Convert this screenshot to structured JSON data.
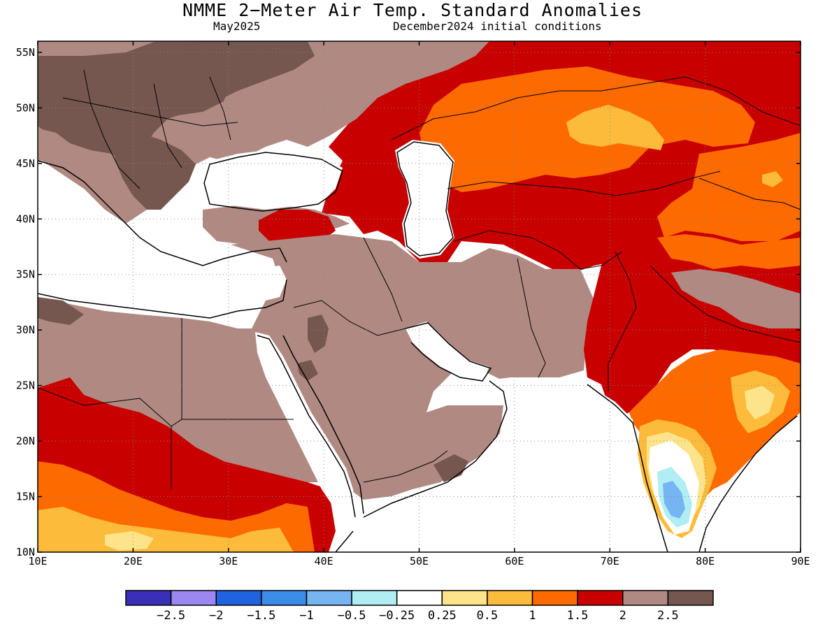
{
  "header": {
    "title": "NMME 2−Meter Air Temp. Standard Anomalies",
    "target_month": "May2025",
    "initial_conditions": "December2024 initial conditions"
  },
  "map": {
    "lon_range": [
      10,
      90
    ],
    "lat_range": [
      10,
      56
    ],
    "lon_ticks": [
      {
        "value": 10,
        "label": "10E"
      },
      {
        "value": 20,
        "label": "20E"
      },
      {
        "value": 30,
        "label": "30E"
      },
      {
        "value": 40,
        "label": "40E"
      },
      {
        "value": 50,
        "label": "50E"
      },
      {
        "value": 60,
        "label": "60E"
      },
      {
        "value": 70,
        "label": "70E"
      },
      {
        "value": 80,
        "label": "80E"
      },
      {
        "value": 90,
        "label": "90E"
      }
    ],
    "lat_ticks": [
      {
        "value": 10,
        "label": "10N"
      },
      {
        "value": 15,
        "label": "15N"
      },
      {
        "value": 20,
        "label": "20N"
      },
      {
        "value": 25,
        "label": "25N"
      },
      {
        "value": 30,
        "label": "30N"
      },
      {
        "value": 35,
        "label": "35N"
      },
      {
        "value": 40,
        "label": "40N"
      },
      {
        "value": 45,
        "label": "45N"
      },
      {
        "value": 50,
        "label": "50N"
      },
      {
        "value": 55,
        "label": "55N"
      }
    ],
    "grid_lines": true,
    "colors": {
      "lt_m2p5": "#3a2fb8",
      "m2p5_m2": "#9b86f2",
      "m2_m1p5": "#1f63e0",
      "m1p5_m1": "#3b8de8",
      "m1_m0p5": "#76b4f2",
      "m0p5_m0p25": "#b0eef4",
      "neutral": "#ffffff",
      "p0p25_p0p5": "#fde38a",
      "p0p5_p1": "#fdbb3b",
      "p1_p1p5": "#fd6a00",
      "p1p5_p2": "#c80000",
      "p2_p2p5": "#b08a82",
      "gt_p2p5": "#75574f"
    }
  },
  "colorbar": {
    "colors": [
      "#3a2fb8",
      "#9b86f2",
      "#1f63e0",
      "#3b8de8",
      "#76b4f2",
      "#b0eef4",
      "#ffffff",
      "#fde38a",
      "#fdbb3b",
      "#fd6a00",
      "#c80000",
      "#b08a82",
      "#75574f"
    ],
    "labels": [
      "−2.5",
      "−2",
      "−1.5",
      "−1",
      "−0.5",
      "−0.25",
      "0.25",
      "0.5",
      "1",
      "1.5",
      "2",
      "2.5"
    ]
  }
}
